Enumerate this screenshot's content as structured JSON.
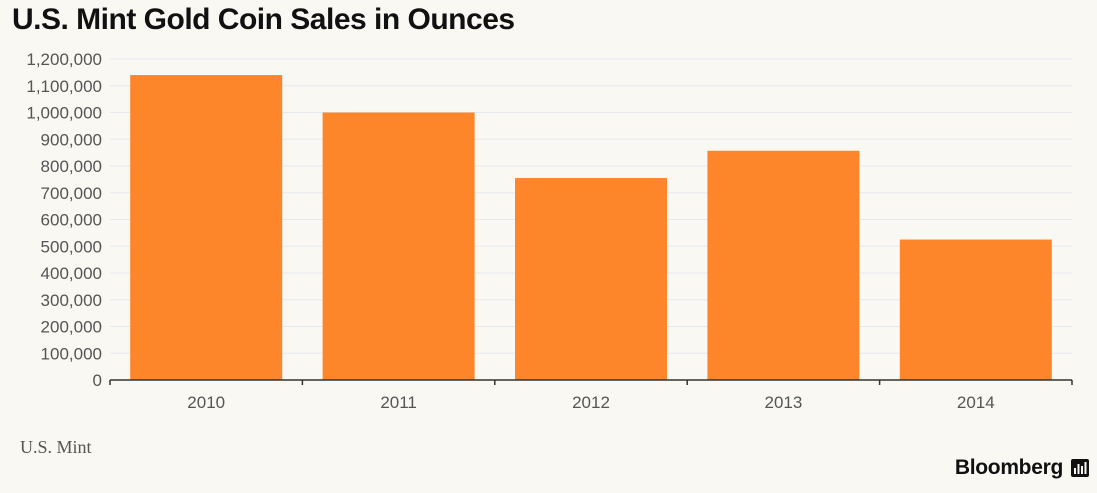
{
  "title": "U.S. Mint Gold Coin Sales in Ounces",
  "source": "U.S. Mint",
  "brand": "Bloomberg",
  "brand_logo_icon": "bloomberg-terminal-icon",
  "colors": {
    "background": "#f9f8f3",
    "bar": "#fd862b",
    "grid": "#e4e8ef",
    "axis": "#333333",
    "tick_label": "#555555"
  },
  "chart_data": {
    "type": "bar",
    "title": "U.S. Mint Gold Coin Sales in Ounces",
    "xlabel": "",
    "ylabel": "",
    "categories": [
      "2010",
      "2011",
      "2012",
      "2013",
      "2014"
    ],
    "values": [
      1140000,
      1000000,
      755000,
      857000,
      525000
    ],
    "ylim": [
      0,
      1200000
    ],
    "yticks": [
      0,
      100000,
      200000,
      300000,
      400000,
      500000,
      600000,
      700000,
      800000,
      900000,
      1000000,
      1100000,
      1200000
    ],
    "ytick_labels": [
      "0",
      "100,000",
      "200,000",
      "300,000",
      "400,000",
      "500,000",
      "600,000",
      "700,000",
      "800,000",
      "900,000",
      "1,000,000",
      "1,100,000",
      "1,200,000"
    ],
    "grid": true,
    "legend": "none"
  }
}
